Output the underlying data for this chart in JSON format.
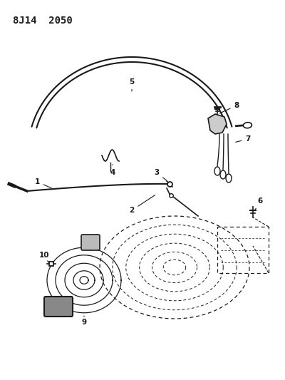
{
  "title": "8J14  2050",
  "bg_color": "#ffffff",
  "line_color": "#1a1a1a",
  "fig_width": 4.0,
  "fig_height": 5.33,
  "dpi": 100
}
